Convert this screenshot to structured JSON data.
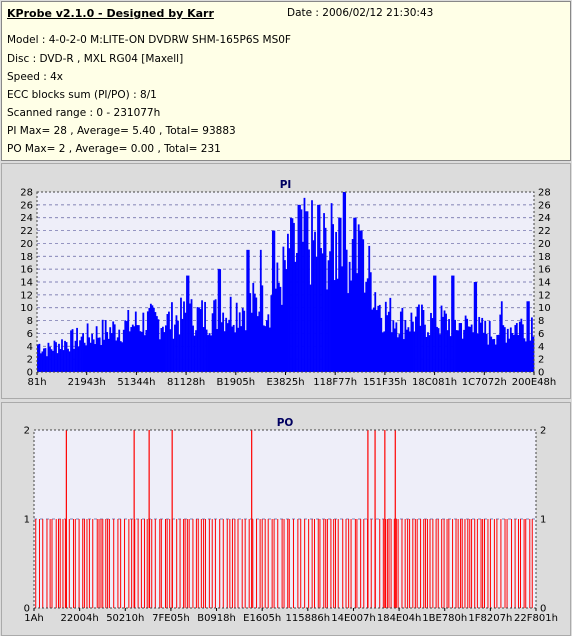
{
  "info": {
    "title": "KProbe v2.1.0 - Designed by Karr",
    "date": "Date : 2006/02/12 21:30:43",
    "lines": [
      "Model : 4-0-2-0 M:LITE-ON DVDRW SHM-165P6S MS0F",
      "Disc : DVD-R , MXL RG04 [Maxell]",
      "Speed : 4x",
      "ECC blocks sum (PI/PO) : 8/1",
      "Scanned range : 0 - 231077h",
      "PI Max= 28 , Average= 5.40 , Total= 93883",
      "PO Max= 2 , Average= 0.00 , Total= 231"
    ]
  },
  "colors": {
    "pi_fill": "#0000ff",
    "po_line": "#ff0000",
    "plot_bg": "#eeeef9",
    "grid": "#6060a0"
  },
  "chart_data": [
    {
      "type": "bar",
      "title": "PI",
      "ylim": [
        0,
        28
      ],
      "yticks": [
        0,
        2,
        4,
        6,
        8,
        10,
        12,
        14,
        16,
        18,
        20,
        22,
        24,
        26,
        28
      ],
      "xlim": [
        0,
        231077
      ],
      "xtick_labels": [
        "81h",
        "21943h",
        "51344h",
        "81128h",
        "B1905h",
        "E3825h",
        "118F77h",
        "151F35h",
        "18C081h",
        "1C7072h",
        "200E48h"
      ],
      "envelope": [
        [
          0,
          5
        ],
        [
          5000,
          4
        ],
        [
          10000,
          5
        ],
        [
          20000,
          6
        ],
        [
          30000,
          7
        ],
        [
          40000,
          8
        ],
        [
          50000,
          9
        ],
        [
          60000,
          9
        ],
        [
          70000,
          10
        ],
        [
          80000,
          10
        ],
        [
          90000,
          11
        ],
        [
          100000,
          12
        ],
        [
          108000,
          12
        ],
        [
          113000,
          16
        ],
        [
          118000,
          20
        ],
        [
          125000,
          23
        ],
        [
          132000,
          22
        ],
        [
          140000,
          22
        ],
        [
          148000,
          21
        ],
        [
          155000,
          17
        ],
        [
          160000,
          11
        ],
        [
          170000,
          9
        ],
        [
          180000,
          9
        ],
        [
          190000,
          9
        ],
        [
          200000,
          8
        ],
        [
          210000,
          7
        ],
        [
          220000,
          8
        ],
        [
          231077,
          9
        ]
      ],
      "peaks": [
        [
          110000,
          22
        ],
        [
          118000,
          24
        ],
        [
          122000,
          26
        ],
        [
          125500,
          25
        ],
        [
          131000,
          26
        ],
        [
          137000,
          23
        ],
        [
          140500,
          24
        ],
        [
          143000,
          28
        ],
        [
          148000,
          24
        ],
        [
          150500,
          22
        ],
        [
          98000,
          19
        ],
        [
          104000,
          19
        ],
        [
          85000,
          16
        ],
        [
          70000,
          15
        ],
        [
          185000,
          15
        ],
        [
          193000,
          15
        ],
        [
          204000,
          14
        ],
        [
          216000,
          11
        ],
        [
          228000,
          11
        ]
      ]
    },
    {
      "type": "bar",
      "title": "PO",
      "ylim": [
        0,
        2
      ],
      "yticks": [
        0,
        1,
        2
      ],
      "xlim": [
        0,
        231077
      ],
      "xtick_labels": [
        "1Ah",
        "22004h",
        "50210h",
        "7FE05h",
        "B0918h",
        "E1605h",
        "115886h",
        "14E007h",
        "184E04h",
        "1BE780h",
        "1F8207h",
        "22F801h"
      ],
      "value2_positions": [
        14900,
        46100,
        53000,
        63600,
        100200,
        153700,
        157000,
        161500,
        166300
      ]
    }
  ]
}
